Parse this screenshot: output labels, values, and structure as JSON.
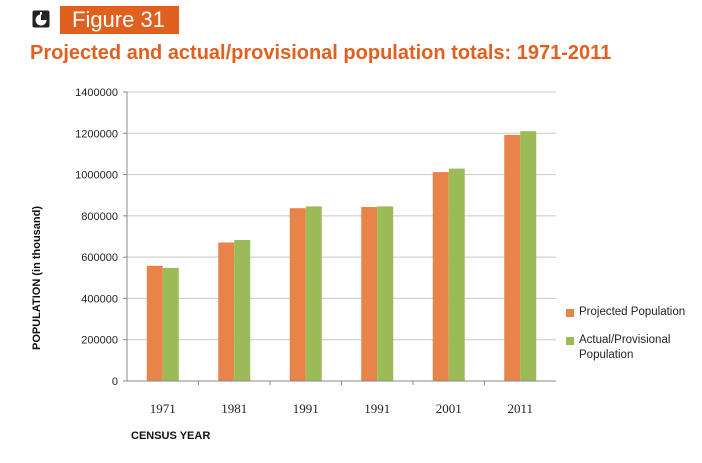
{
  "figure": {
    "label": "Figure 31",
    "icon": "chart-icon"
  },
  "chart_data": {
    "type": "bar",
    "title": "Projected and actual/provisional population totals: 1971-2011",
    "xlabel": "CENSUS YEAR",
    "ylabel": "POPULATION (in thousand)",
    "categories": [
      "1971",
      "1981",
      "1991",
      "1991",
      "2001",
      "2011"
    ],
    "ylim": [
      0,
      1400000
    ],
    "yticks": [
      "0",
      "200000",
      "400000",
      "600000",
      "800000",
      "1000000",
      "1200000",
      "1400000"
    ],
    "grid": true,
    "legend_position": "right",
    "series": [
      {
        "name": "Projected Population",
        "color": "#e8834a",
        "values": [
          558000,
          671000,
          837000,
          843000,
          1012000,
          1192000
        ]
      },
      {
        "name": "Actual/Provisional Population",
        "color": "#9bbb59",
        "values": [
          548000,
          683000,
          846000,
          846000,
          1029000,
          1210000
        ]
      }
    ]
  },
  "legend": {
    "items": [
      {
        "label": "Projected Population",
        "color": "#e8834a"
      },
      {
        "label": "Actual/Provisional Population",
        "color": "#9bbb59"
      }
    ]
  }
}
